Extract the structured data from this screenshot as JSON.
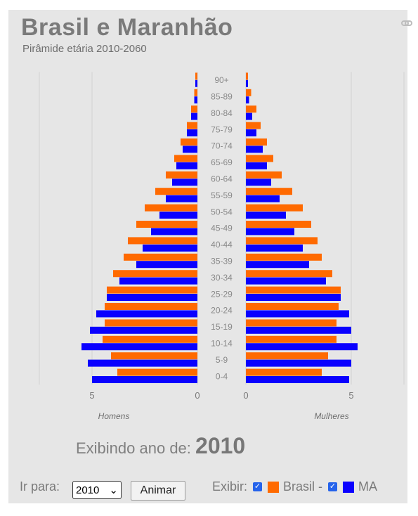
{
  "header": {
    "title": "Brasil e Maranhão",
    "subtitle": "Pirâmide etária 2010-2060"
  },
  "chart_data": {
    "type": "bar",
    "orientation": "horizontal-pyramid",
    "categories": [
      "0-4",
      "5-9",
      "10-14",
      "15-19",
      "20-24",
      "25-29",
      "30-34",
      "35-39",
      "40-44",
      "45-49",
      "50-54",
      "55-59",
      "60-64",
      "65-69",
      "70-74",
      "75-79",
      "80-84",
      "85-89",
      "90+"
    ],
    "left_label": "Homens",
    "right_label": "Mulheres",
    "xlim": [
      0,
      6
    ],
    "tick_labels_left": [
      "5",
      "0"
    ],
    "tick_labels_right": [
      "0",
      "5"
    ],
    "grid": true,
    "series": [
      {
        "name": "Brasil",
        "color": "#ff6a00",
        "male": [
          3.8,
          4.1,
          4.5,
          4.4,
          4.4,
          4.3,
          4.0,
          3.5,
          3.3,
          2.9,
          2.5,
          2.0,
          1.5,
          1.1,
          0.8,
          0.5,
          0.3,
          0.15,
          0.1
        ],
        "female": [
          3.6,
          3.9,
          4.3,
          4.3,
          4.4,
          4.5,
          4.1,
          3.6,
          3.4,
          3.1,
          2.7,
          2.2,
          1.7,
          1.3,
          1.0,
          0.7,
          0.5,
          0.25,
          0.1
        ]
      },
      {
        "name": "MA",
        "color": "#0a00ff",
        "male": [
          5.0,
          5.2,
          5.5,
          5.1,
          4.8,
          4.3,
          3.7,
          2.9,
          2.6,
          2.2,
          1.8,
          1.5,
          1.2,
          1.0,
          0.7,
          0.5,
          0.3,
          0.15,
          0.1
        ],
        "female": [
          4.9,
          5.0,
          5.3,
          5.0,
          4.9,
          4.5,
          3.8,
          3.0,
          2.7,
          2.3,
          1.9,
          1.6,
          1.2,
          1.0,
          0.8,
          0.5,
          0.3,
          0.15,
          0.1
        ]
      }
    ]
  },
  "status": {
    "showing_label": "Exibindo ano de:",
    "showing_year": "2010"
  },
  "controls": {
    "goto_label": "Ir para:",
    "year_value": "2010",
    "animate_label": "Animar",
    "show_label": "Exibir:",
    "legend_brasil": "Brasil -",
    "legend_ma": "MA",
    "check_glyph": "✓",
    "select_arrow": "⌄"
  }
}
